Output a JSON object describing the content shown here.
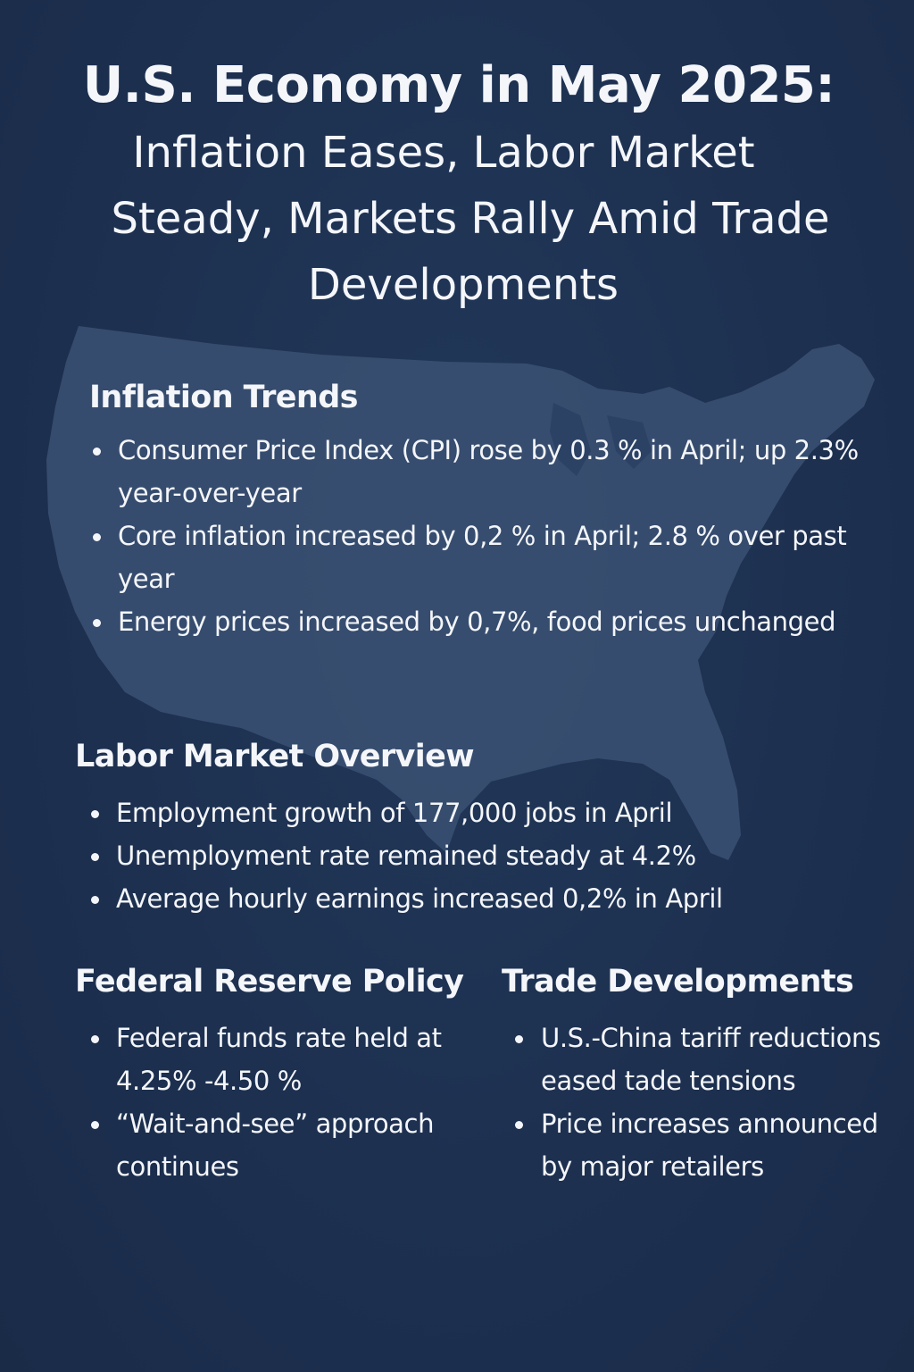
{
  "title": {
    "line1": "U.S. Economy in May 2025:",
    "line2": "Inflation Eases, Labor Market",
    "line3": "Steady, Markets Rally Amid Trade",
    "line4": "Developments"
  },
  "background": {
    "color": "#1e3150",
    "map_icon": "united-states-map-silhouette",
    "map_color": "#3b5173"
  },
  "sections": {
    "inflation": {
      "heading": "Inflation Trends",
      "items": [
        "Consumer Price Index (CPI) rose by 0.3 % in April; up 2.3% year-over-year",
        "Core inflation increased by 0,2 % in April; 2.8 % over past year",
        "Energy prices increased by 0,7%, food prices unchanged"
      ]
    },
    "labor": {
      "heading": "Labor Market Overview",
      "items": [
        "Employment growth of 177,000 jobs in April",
        "Unemployment rate remained steady at 4.2%",
        "Average hourly earnings increased 0,2% in April"
      ]
    },
    "fed": {
      "heading": "Federal Reserve Policy",
      "items": [
        "Federal funds rate held at 4.25% -4.50 %",
        "“Wait-and-see” approach continues"
      ]
    },
    "trade": {
      "heading": "Trade Developments",
      "items": [
        "U.S.-China tariff reductions eased tade tensions",
        "Price increases announced by major retailers"
      ]
    }
  }
}
